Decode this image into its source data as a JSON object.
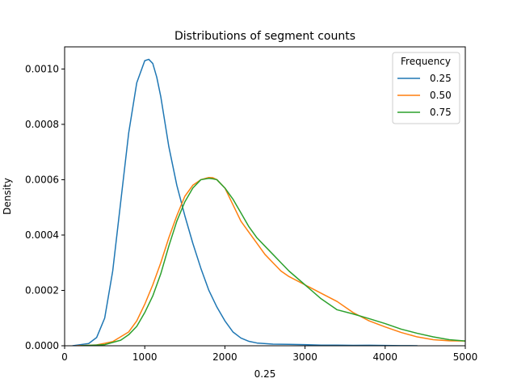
{
  "chart_data": {
    "type": "line",
    "title": "Distributions of segment counts",
    "xlabel": "0.25",
    "ylabel": "Density",
    "xlim": [
      0,
      5000
    ],
    "ylim": [
      0,
      0.00108
    ],
    "xticks": [
      0,
      1000,
      2000,
      3000,
      4000,
      5000
    ],
    "xtick_labels": [
      "0",
      "1000",
      "2000",
      "3000",
      "4000",
      "5000"
    ],
    "yticks": [
      0,
      0.0002,
      0.0004,
      0.0006,
      0.0008,
      0.001
    ],
    "ytick_labels": [
      "0.0000",
      "0.0002",
      "0.0004",
      "0.0006",
      "0.0008",
      "0.0010"
    ],
    "grid": false,
    "legend": {
      "title": "Frequency",
      "placement": "top-right"
    },
    "series": [
      {
        "name": "0.25",
        "color": "#1f77b4",
        "points": [
          [
            100,
            0.0
          ],
          [
            300,
            8e-06
          ],
          [
            400,
            3e-05
          ],
          [
            500,
            0.0001
          ],
          [
            600,
            0.00027
          ],
          [
            700,
            0.00052
          ],
          [
            800,
            0.00077
          ],
          [
            900,
            0.00095
          ],
          [
            1000,
            0.00103
          ],
          [
            1050,
            0.001035
          ],
          [
            1100,
            0.00102
          ],
          [
            1150,
            0.00097
          ],
          [
            1200,
            0.0009
          ],
          [
            1300,
            0.00072
          ],
          [
            1400,
            0.00058
          ],
          [
            1500,
            0.00047
          ],
          [
            1600,
            0.00037
          ],
          [
            1700,
            0.00028
          ],
          [
            1800,
            0.0002
          ],
          [
            1900,
            0.00014
          ],
          [
            2000,
            9e-05
          ],
          [
            2100,
            5e-05
          ],
          [
            2200,
            2.8e-05
          ],
          [
            2300,
            1.6e-05
          ],
          [
            2400,
            1e-05
          ],
          [
            2600,
            6e-06
          ],
          [
            2800,
            5e-06
          ],
          [
            3000,
            4e-06
          ],
          [
            3200,
            2e-06
          ],
          [
            3400,
            2e-06
          ],
          [
            3600,
            1.5e-06
          ],
          [
            3800,
            1.8e-06
          ],
          [
            4000,
            1.2e-06
          ],
          [
            4200,
            5e-07
          ],
          [
            4400,
            0.0
          ]
        ]
      },
      {
        "name": "0.50",
        "color": "#ff7f0e",
        "points": [
          [
            150,
            0.0
          ],
          [
            400,
            3e-06
          ],
          [
            600,
            1.5e-05
          ],
          [
            800,
            5e-05
          ],
          [
            900,
            9e-05
          ],
          [
            1000,
            0.00015
          ],
          [
            1100,
            0.00022
          ],
          [
            1200,
            0.0003
          ],
          [
            1300,
            0.00039
          ],
          [
            1400,
            0.00047
          ],
          [
            1500,
            0.00054
          ],
          [
            1600,
            0.00058
          ],
          [
            1700,
            0.0006
          ],
          [
            1800,
            0.000608
          ],
          [
            1850,
            0.000607
          ],
          [
            1900,
            0.0006
          ],
          [
            2000,
            0.00057
          ],
          [
            2100,
            0.00051
          ],
          [
            2200,
            0.00045
          ],
          [
            2300,
            0.00041
          ],
          [
            2400,
            0.00037
          ],
          [
            2500,
            0.00033
          ],
          [
            2600,
            0.0003
          ],
          [
            2700,
            0.00027
          ],
          [
            2800,
            0.00025
          ],
          [
            3000,
            0.00022
          ],
          [
            3200,
            0.00019
          ],
          [
            3400,
            0.00016
          ],
          [
            3600,
            0.00012
          ],
          [
            3800,
            9e-05
          ],
          [
            4000,
            6.8e-05
          ],
          [
            4200,
            4.8e-05
          ],
          [
            4400,
            3.2e-05
          ],
          [
            4600,
            2.2e-05
          ],
          [
            4800,
            1.8e-05
          ],
          [
            5000,
            1.7e-05
          ]
        ]
      },
      {
        "name": "0.75",
        "color": "#2ca02c",
        "points": [
          [
            200,
            0.0
          ],
          [
            500,
            4e-06
          ],
          [
            700,
            2e-05
          ],
          [
            800,
            4e-05
          ],
          [
            900,
            7e-05
          ],
          [
            1000,
            0.00012
          ],
          [
            1100,
            0.00018
          ],
          [
            1200,
            0.00026
          ],
          [
            1300,
            0.00036
          ],
          [
            1400,
            0.00045
          ],
          [
            1500,
            0.00052
          ],
          [
            1600,
            0.00057
          ],
          [
            1700,
            0.0006
          ],
          [
            1800,
            0.000605
          ],
          [
            1850,
            0.000603
          ],
          [
            1900,
            0.0006
          ],
          [
            2000,
            0.00057
          ],
          [
            2100,
            0.00053
          ],
          [
            2200,
            0.00048
          ],
          [
            2300,
            0.00043
          ],
          [
            2400,
            0.00039
          ],
          [
            2500,
            0.00036
          ],
          [
            2600,
            0.00033
          ],
          [
            2700,
            0.0003
          ],
          [
            2800,
            0.00027
          ],
          [
            3000,
            0.00022
          ],
          [
            3200,
            0.00017
          ],
          [
            3400,
            0.00013
          ],
          [
            3600,
            0.000115
          ],
          [
            3800,
            9.8e-05
          ],
          [
            4000,
            8e-05
          ],
          [
            4200,
            6e-05
          ],
          [
            4400,
            4.5e-05
          ],
          [
            4600,
            3.2e-05
          ],
          [
            4800,
            2.2e-05
          ],
          [
            5000,
            1.7e-05
          ]
        ]
      }
    ]
  }
}
